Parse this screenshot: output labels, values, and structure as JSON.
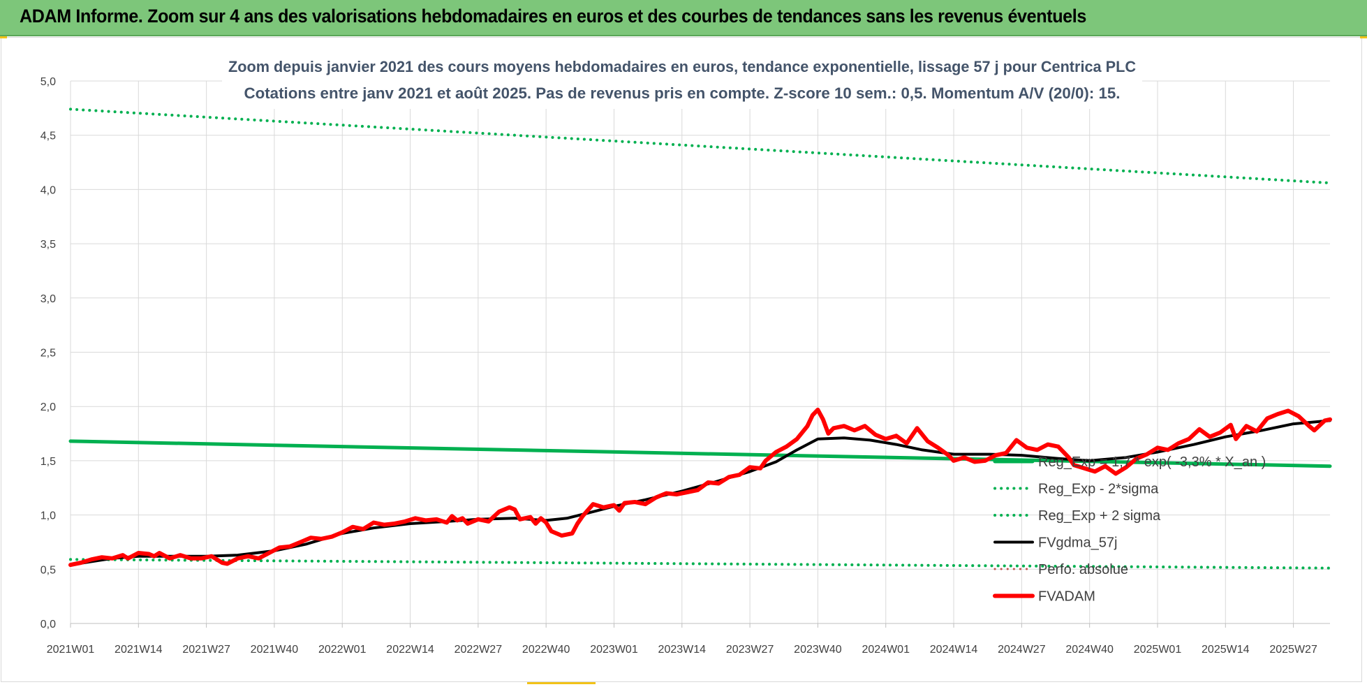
{
  "banner": {
    "title": "ADAM Informe. Zoom sur 4 ans des valorisations hebdomadaires en euros et des courbes de tendances sans les revenus éventuels"
  },
  "chart_data": {
    "type": "line",
    "title": "Zoom depuis janvier 2021 des cours moyens hebdomadaires en euros, tendance exponentielle, lissage 57 j pour Centrica PLC",
    "subtitle": "Cotations entre janv 2021 et août 2025.  Pas de revenus pris en compte. Z-score 10 sem.: 0,5. Momentum A/V (20/0): 15.",
    "ylim": [
      0,
      5
    ],
    "y_ticks": [
      "0,0",
      "0,5",
      "1,0",
      "1,5",
      "2,0",
      "2,5",
      "3,0",
      "3,5",
      "4,0",
      "4,5",
      "5,0"
    ],
    "x_ticks": [
      "2021W01",
      "2021W14",
      "2021W27",
      "2021W40",
      "2022W01",
      "2022W14",
      "2022W27",
      "2022W40",
      "2023W01",
      "2023W14",
      "2023W27",
      "2023W40",
      "2024W01",
      "2024W14",
      "2024W27",
      "2024W40",
      "2025W01",
      "2025W14",
      "2025W27"
    ],
    "x_tick_weeks": [
      0,
      13,
      26,
      39,
      52,
      65,
      78,
      91,
      104,
      117,
      130,
      143,
      156,
      169,
      182,
      195,
      208,
      221,
      234
    ],
    "x_max_week": 241,
    "grid": true,
    "legend_position": "bottom-right",
    "series": [
      {
        "name": "Reg_Exp = 1,7 * exp( -3,3% * X_an )",
        "style": "solid",
        "color": "#00b050",
        "width": 5,
        "points": [
          [
            0,
            1.68
          ],
          [
            241,
            1.45
          ]
        ]
      },
      {
        "name": "Reg_Exp - 2*sigma",
        "style": "dotted",
        "color": "#00b050",
        "width": 4,
        "points": [
          [
            0,
            0.59
          ],
          [
            241,
            0.51
          ]
        ]
      },
      {
        "name": "Reg_Exp + 2 sigma",
        "style": "dotted",
        "color": "#00b050",
        "width": 4,
        "points": [
          [
            0,
            4.74
          ],
          [
            241,
            4.06
          ]
        ]
      },
      {
        "name": "FVgdma_57j",
        "style": "solid",
        "color": "#000000",
        "width": 4,
        "points": [
          [
            0,
            0.54
          ],
          [
            4,
            0.57
          ],
          [
            8,
            0.6
          ],
          [
            13,
            0.62
          ],
          [
            20,
            0.62
          ],
          [
            26,
            0.62
          ],
          [
            32,
            0.63
          ],
          [
            39,
            0.67
          ],
          [
            45,
            0.73
          ],
          [
            52,
            0.83
          ],
          [
            58,
            0.88
          ],
          [
            65,
            0.92
          ],
          [
            72,
            0.94
          ],
          [
            78,
            0.96
          ],
          [
            85,
            0.97
          ],
          [
            91,
            0.95
          ],
          [
            95,
            0.97
          ],
          [
            100,
            1.03
          ],
          [
            104,
            1.08
          ],
          [
            110,
            1.14
          ],
          [
            117,
            1.22
          ],
          [
            123,
            1.3
          ],
          [
            130,
            1.4
          ],
          [
            135,
            1.49
          ],
          [
            139,
            1.6
          ],
          [
            143,
            1.7
          ],
          [
            148,
            1.71
          ],
          [
            153,
            1.69
          ],
          [
            158,
            1.65
          ],
          [
            163,
            1.6
          ],
          [
            169,
            1.56
          ],
          [
            176,
            1.56
          ],
          [
            182,
            1.55
          ],
          [
            189,
            1.52
          ],
          [
            195,
            1.5
          ],
          [
            202,
            1.53
          ],
          [
            208,
            1.58
          ],
          [
            215,
            1.65
          ],
          [
            221,
            1.72
          ],
          [
            228,
            1.78
          ],
          [
            234,
            1.84
          ],
          [
            241,
            1.87
          ]
        ]
      },
      {
        "name": "Perfo. absolue",
        "style": "dotted",
        "color": "#c0504d",
        "width": 3,
        "points": []
      },
      {
        "name": "FVADAM",
        "style": "solid",
        "color": "#ff0000",
        "width": 6,
        "points": [
          [
            0,
            0.54
          ],
          [
            2,
            0.56
          ],
          [
            4,
            0.59
          ],
          [
            6,
            0.61
          ],
          [
            8,
            0.6
          ],
          [
            10,
            0.63
          ],
          [
            11,
            0.6
          ],
          [
            13,
            0.65
          ],
          [
            15,
            0.64
          ],
          [
            16,
            0.62
          ],
          [
            17,
            0.65
          ],
          [
            19,
            0.6
          ],
          [
            21,
            0.63
          ],
          [
            23,
            0.6
          ],
          [
            25,
            0.6
          ],
          [
            27,
            0.62
          ],
          [
            29,
            0.56
          ],
          [
            30,
            0.55
          ],
          [
            32,
            0.6
          ],
          [
            34,
            0.62
          ],
          [
            36,
            0.6
          ],
          [
            38,
            0.65
          ],
          [
            40,
            0.7
          ],
          [
            42,
            0.71
          ],
          [
            44,
            0.75
          ],
          [
            46,
            0.79
          ],
          [
            48,
            0.78
          ],
          [
            50,
            0.8
          ],
          [
            52,
            0.84
          ],
          [
            54,
            0.89
          ],
          [
            56,
            0.87
          ],
          [
            58,
            0.93
          ],
          [
            60,
            0.91
          ],
          [
            62,
            0.92
          ],
          [
            64,
            0.94
          ],
          [
            66,
            0.97
          ],
          [
            68,
            0.95
          ],
          [
            70,
            0.96
          ],
          [
            72,
            0.93
          ],
          [
            73,
            0.99
          ],
          [
            74,
            0.95
          ],
          [
            75,
            0.97
          ],
          [
            76,
            0.92
          ],
          [
            78,
            0.96
          ],
          [
            80,
            0.94
          ],
          [
            82,
            1.03
          ],
          [
            84,
            1.07
          ],
          [
            85,
            1.05
          ],
          [
            86,
            0.96
          ],
          [
            88,
            0.98
          ],
          [
            89,
            0.92
          ],
          [
            90,
            0.97
          ],
          [
            91,
            0.93
          ],
          [
            92,
            0.85
          ],
          [
            94,
            0.81
          ],
          [
            96,
            0.83
          ],
          [
            97,
            0.92
          ],
          [
            98,
            0.99
          ],
          [
            100,
            1.1
          ],
          [
            102,
            1.07
          ],
          [
            104,
            1.09
          ],
          [
            105,
            1.04
          ],
          [
            106,
            1.11
          ],
          [
            108,
            1.12
          ],
          [
            110,
            1.1
          ],
          [
            112,
            1.16
          ],
          [
            114,
            1.2
          ],
          [
            116,
            1.19
          ],
          [
            118,
            1.21
          ],
          [
            120,
            1.23
          ],
          [
            122,
            1.3
          ],
          [
            124,
            1.29
          ],
          [
            126,
            1.35
          ],
          [
            128,
            1.37
          ],
          [
            130,
            1.44
          ],
          [
            132,
            1.43
          ],
          [
            133,
            1.5
          ],
          [
            135,
            1.58
          ],
          [
            137,
            1.63
          ],
          [
            139,
            1.7
          ],
          [
            141,
            1.82
          ],
          [
            142,
            1.92
          ],
          [
            143,
            1.97
          ],
          [
            144,
            1.88
          ],
          [
            145,
            1.75
          ],
          [
            146,
            1.8
          ],
          [
            148,
            1.82
          ],
          [
            150,
            1.78
          ],
          [
            152,
            1.82
          ],
          [
            154,
            1.74
          ],
          [
            156,
            1.7
          ],
          [
            158,
            1.73
          ],
          [
            160,
            1.66
          ],
          [
            162,
            1.8
          ],
          [
            164,
            1.68
          ],
          [
            166,
            1.62
          ],
          [
            168,
            1.55
          ],
          [
            169,
            1.5
          ],
          [
            171,
            1.53
          ],
          [
            173,
            1.49
          ],
          [
            175,
            1.5
          ],
          [
            177,
            1.55
          ],
          [
            179,
            1.57
          ],
          [
            181,
            1.69
          ],
          [
            183,
            1.62
          ],
          [
            185,
            1.6
          ],
          [
            187,
            1.65
          ],
          [
            189,
            1.63
          ],
          [
            191,
            1.53
          ],
          [
            192,
            1.46
          ],
          [
            194,
            1.43
          ],
          [
            196,
            1.4
          ],
          [
            198,
            1.45
          ],
          [
            200,
            1.38
          ],
          [
            202,
            1.44
          ],
          [
            204,
            1.52
          ],
          [
            206,
            1.56
          ],
          [
            208,
            1.62
          ],
          [
            210,
            1.6
          ],
          [
            212,
            1.66
          ],
          [
            214,
            1.7
          ],
          [
            216,
            1.79
          ],
          [
            218,
            1.72
          ],
          [
            220,
            1.76
          ],
          [
            222,
            1.83
          ],
          [
            223,
            1.7
          ],
          [
            225,
            1.82
          ],
          [
            227,
            1.77
          ],
          [
            229,
            1.89
          ],
          [
            231,
            1.93
          ],
          [
            233,
            1.96
          ],
          [
            235,
            1.91
          ],
          [
            237,
            1.82
          ],
          [
            238,
            1.78
          ],
          [
            240,
            1.87
          ],
          [
            241,
            1.88
          ]
        ]
      }
    ]
  }
}
